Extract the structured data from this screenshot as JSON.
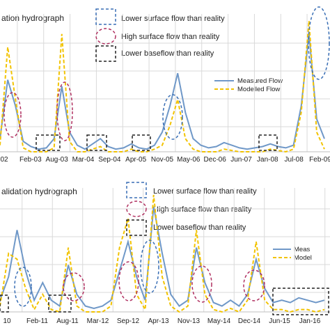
{
  "legend_keys": [
    {
      "style": "blue-dashed-box",
      "label": "Lower surface flow than reality",
      "color": "#3a6fb5"
    },
    {
      "style": "red-dashed-ellipse",
      "label": "High surface flow than reality",
      "color": "#b03060"
    },
    {
      "style": "black-dashed-box",
      "label": "Lower baseflow than reality",
      "color": "#222222"
    }
  ],
  "colors": {
    "measured": "#6f98c8",
    "modelled": "#f2c300",
    "grid": "#d9d9d9"
  },
  "chart_data": [
    {
      "type": "line",
      "title": "ation hydrograph",
      "x_tick_labels": [
        "02",
        "Feb-03",
        "Aug-03",
        "Mar-04",
        "Sep-04",
        "Apr-05",
        "Nov-05",
        "May-06",
        "Dec-06",
        "Jun-07",
        "Jan-08",
        "Jul-08",
        "Feb-09"
      ],
      "legend": [
        "Measured Flow",
        "Modelled Flow"
      ],
      "legend_placement": "right",
      "grid": true,
      "series": [
        {
          "name": "Measured Flow",
          "y_estimate": [
            0.1,
            0.55,
            0.35,
            0.08,
            0.04,
            0.02,
            0.03,
            0.1,
            0.5,
            0.15,
            0.05,
            0.02,
            0.06,
            0.1,
            0.04,
            0.02,
            0.03,
            0.06,
            0.03,
            0.02,
            0.05,
            0.15,
            0.35,
            0.6,
            0.3,
            0.1,
            0.05,
            0.03,
            0.04,
            0.07,
            0.05,
            0.03,
            0.02,
            0.03,
            0.04,
            0.06,
            0.04,
            0.03,
            0.05,
            0.35,
            0.9,
            0.25,
            0.1
          ]
        },
        {
          "name": "Modelled Flow",
          "y_estimate": [
            0.05,
            0.8,
            0.4,
            0.03,
            0.0,
            0.0,
            0.0,
            0.03,
            0.9,
            0.08,
            0.0,
            0.0,
            0.02,
            0.04,
            0.0,
            0.0,
            0.0,
            0.02,
            0.0,
            0.0,
            0.02,
            0.05,
            0.2,
            0.4,
            0.1,
            0.02,
            0.0,
            0.0,
            0.0,
            0.02,
            0.01,
            0.0,
            0.0,
            0.0,
            0.0,
            0.02,
            0.01,
            0.0,
            0.02,
            0.3,
            1.0,
            0.15,
            0.02
          ]
        }
      ]
    },
    {
      "type": "line",
      "title": "alidation hydrograph",
      "x_tick_labels": [
        "10",
        "Feb-11",
        "Aug-11",
        "Mar-12",
        "Sep-12",
        "Apr-13",
        "Nov-13",
        "May-14",
        "Dec-14",
        "Jun-15",
        "Jan-16"
      ],
      "legend": [
        "Meas",
        "Model"
      ],
      "legend_placement": "right",
      "grid": true,
      "series": [
        {
          "name": "Meas",
          "y_estimate": [
            0.1,
            0.3,
            0.7,
            0.35,
            0.1,
            0.25,
            0.1,
            0.05,
            0.4,
            0.15,
            0.05,
            0.03,
            0.05,
            0.1,
            0.35,
            0.6,
            0.3,
            0.1,
            0.9,
            0.5,
            0.15,
            0.05,
            0.1,
            0.55,
            0.25,
            0.08,
            0.05,
            0.1,
            0.05,
            0.15,
            0.45,
            0.2,
            0.08,
            0.1,
            0.08,
            0.12,
            0.1,
            0.08,
            0.1
          ]
        },
        {
          "name": "Model",
          "y_estimate": [
            0.05,
            0.5,
            0.45,
            0.2,
            0.02,
            0.15,
            0.02,
            0.0,
            0.55,
            0.05,
            0.0,
            0.0,
            0.0,
            0.05,
            0.55,
            0.8,
            0.15,
            0.02,
            1.0,
            0.3,
            0.05,
            0.0,
            0.05,
            0.7,
            0.15,
            0.02,
            0.0,
            0.03,
            0.0,
            0.1,
            0.6,
            0.1,
            0.02,
            0.02,
            0.0,
            0.02,
            0.02,
            0.0,
            0.02
          ]
        }
      ]
    }
  ]
}
